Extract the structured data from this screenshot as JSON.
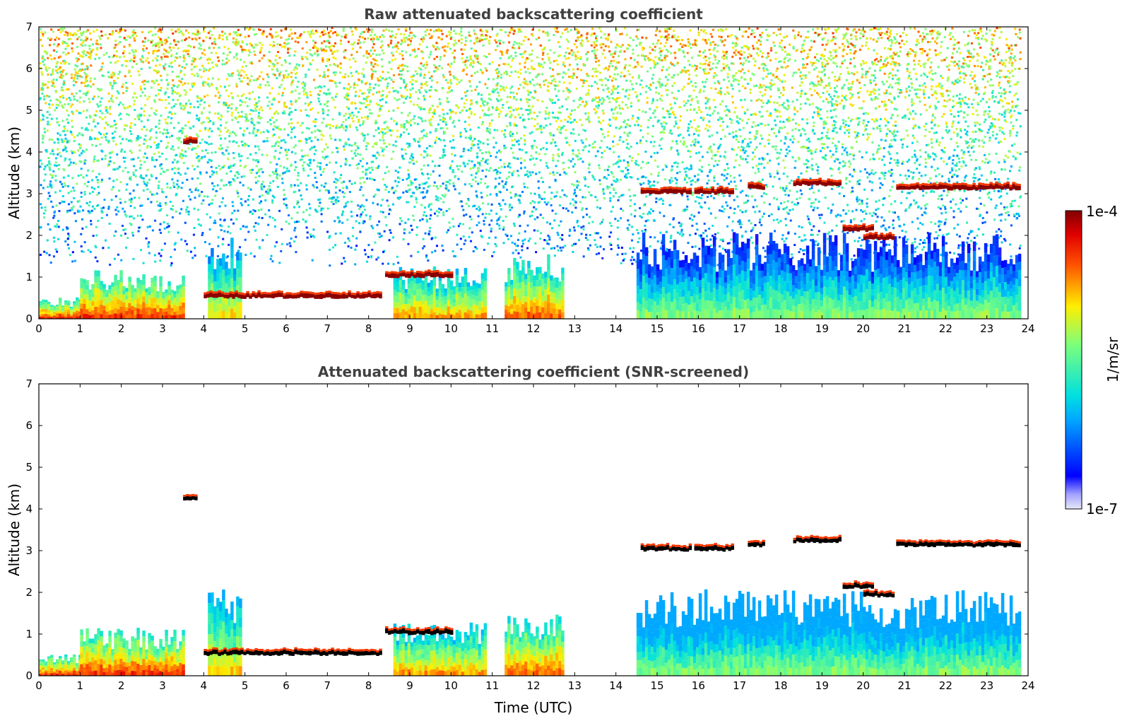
{
  "chart_data": [
    {
      "type": "heatmap",
      "title": "Raw attenuated backscattering coefficient",
      "xlabel": "",
      "ylabel": "Altitude (km)",
      "xlim": [
        0,
        24
      ],
      "ylim": [
        0,
        7
      ],
      "xticks": [
        "0",
        "1",
        "2",
        "3",
        "4",
        "5",
        "6",
        "7",
        "8",
        "9",
        "10",
        "11",
        "12",
        "13",
        "14",
        "15",
        "16",
        "17",
        "18",
        "19",
        "20",
        "21",
        "22",
        "23",
        "24"
      ],
      "yticks": [
        "0",
        "1",
        "2",
        "3",
        "4",
        "5",
        "6",
        "7"
      ],
      "grid": false,
      "features": [
        {
          "kind": "noise_field",
          "x": [
            0,
            23.8
          ],
          "y_from": 1.3,
          "y_to": 7,
          "note": "random noisy background increasing with altitude"
        },
        {
          "kind": "boundary_layer",
          "x": [
            0,
            1
          ],
          "top": 0.4,
          "level": 0.85
        },
        {
          "kind": "boundary_layer",
          "x": [
            1,
            3.5
          ],
          "top": 0.9,
          "level": 0.85
        },
        {
          "kind": "boundary_layer",
          "x": [
            4.1,
            4.9
          ],
          "top": 1.6,
          "level": 0.7
        },
        {
          "kind": "boundary_layer",
          "x": [
            8.6,
            10.8
          ],
          "top": 1.0,
          "level": 0.75
        },
        {
          "kind": "boundary_layer",
          "x": [
            11.3,
            12.7
          ],
          "top": 1.2,
          "level": 0.8
        },
        {
          "kind": "boundary_layer",
          "x": [
            14.5,
            23.8
          ],
          "top": 1.6,
          "level": 0.55
        },
        {
          "kind": "layer",
          "x": [
            3.5,
            3.8
          ],
          "y": 4.2,
          "level": 1.0
        },
        {
          "kind": "layer",
          "x": [
            4.0,
            8.3
          ],
          "y": 0.5,
          "level": 1.0
        },
        {
          "kind": "layer",
          "x": [
            8.4,
            10.0
          ],
          "y": 1.0,
          "level": 1.0
        },
        {
          "kind": "layer",
          "x": [
            14.6,
            15.8
          ],
          "y": 3.0,
          "level": 1.0
        },
        {
          "kind": "layer",
          "x": [
            15.9,
            16.8
          ],
          "y": 3.0,
          "level": 1.0
        },
        {
          "kind": "layer",
          "x": [
            17.2,
            17.6
          ],
          "y": 3.1,
          "level": 1.0
        },
        {
          "kind": "layer",
          "x": [
            18.3,
            19.4
          ],
          "y": 3.2,
          "level": 1.0
        },
        {
          "kind": "layer",
          "x": [
            19.5,
            20.2
          ],
          "y": 2.1,
          "level": 1.0
        },
        {
          "kind": "layer",
          "x": [
            20.0,
            20.7
          ],
          "y": 1.9,
          "level": 1.0
        },
        {
          "kind": "layer",
          "x": [
            20.8,
            23.8
          ],
          "y": 3.1,
          "level": 1.0
        }
      ]
    },
    {
      "type": "heatmap",
      "title": "Attenuated backscattering coefficient (SNR-screened)",
      "xlabel": "Time (UTC)",
      "ylabel": "Altitude (km)",
      "xlim": [
        0,
        24
      ],
      "ylim": [
        0,
        7
      ],
      "xticks": [
        "0",
        "1",
        "2",
        "3",
        "4",
        "5",
        "6",
        "7",
        "8",
        "9",
        "10",
        "11",
        "12",
        "13",
        "14",
        "15",
        "16",
        "17",
        "18",
        "19",
        "20",
        "21",
        "22",
        "23",
        "24"
      ],
      "yticks": [
        "0",
        "1",
        "2",
        "3",
        "4",
        "5",
        "6",
        "7"
      ],
      "grid": false,
      "screened": true
    }
  ],
  "colorbar": {
    "label": "1/m/sr",
    "max_label": "1e-4",
    "min_label": "1e-7",
    "colormap": "jet"
  },
  "colors": {
    "title": "#404040",
    "saturated_layer_top": "#8b0000",
    "saturated_layer_bottom": "#000000"
  }
}
